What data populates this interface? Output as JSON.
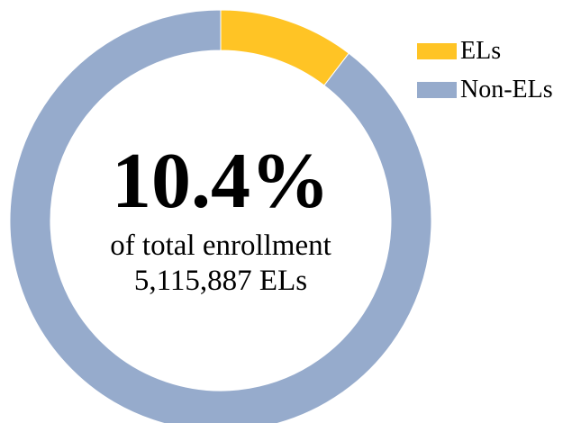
{
  "chart_data": {
    "type": "pie",
    "categories": [
      "ELs",
      "Non-ELs"
    ],
    "values": [
      10.4,
      89.6
    ],
    "colors": [
      "#FFC425",
      "#96ABCC"
    ],
    "legend_position": "top-right",
    "center_value": "10.4%",
    "center_line_1": "of total enrollment",
    "center_line_2": "5,115,887 ELs"
  }
}
